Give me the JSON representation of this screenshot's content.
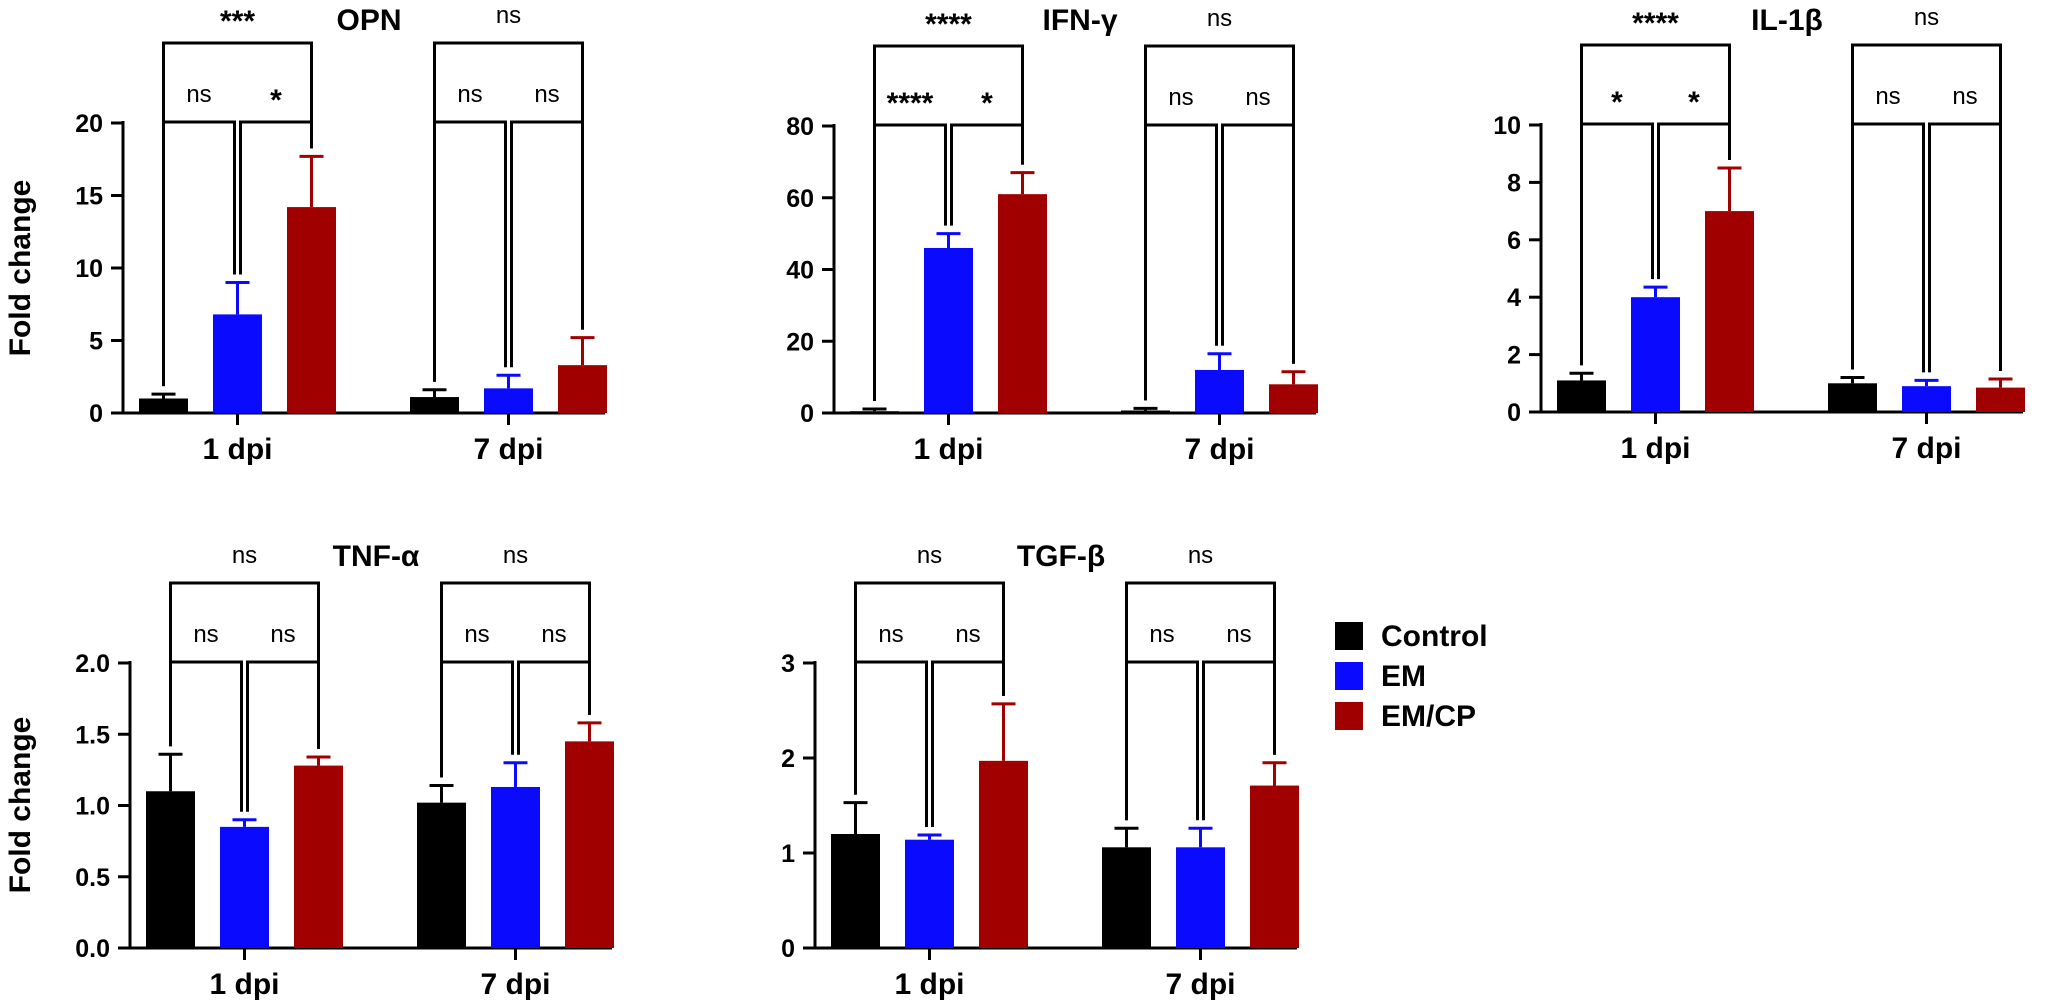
{
  "colors": {
    "Control": "#000000",
    "EM": "#0a0aff",
    "EM/CP": "#a10000"
  },
  "legend": {
    "items": [
      {
        "label": "Control",
        "color": "#000000"
      },
      {
        "label": "EM",
        "color": "#0a0aff"
      },
      {
        "label": "EM/CP",
        "color": "#a10000"
      }
    ]
  },
  "chart_data": [
    {
      "type": "bar",
      "title": "OPN",
      "ylabel": "Fold change",
      "ylim": [
        0,
        20
      ],
      "yticks": [
        0,
        5,
        10,
        15,
        20
      ],
      "ytick_labels": [
        "0",
        "5",
        "10",
        "15",
        "20"
      ],
      "categories": [
        "1 dpi",
        "7 dpi"
      ],
      "series": [
        {
          "name": "Control",
          "values": [
            1.0,
            1.1
          ],
          "errors": [
            0.3,
            0.5
          ]
        },
        {
          "name": "EM",
          "values": [
            6.8,
            1.7
          ],
          "errors": [
            2.2,
            0.9
          ]
        },
        {
          "name": "EM/CP",
          "values": [
            14.2,
            3.3
          ],
          "errors": [
            3.5,
            1.9
          ]
        }
      ],
      "annotations": [
        {
          "group": 0,
          "pair": [
            0,
            1
          ],
          "label": "ns"
        },
        {
          "group": 0,
          "pair": [
            1,
            2
          ],
          "label": "*"
        },
        {
          "group": 0,
          "pair": [
            0,
            2
          ],
          "label": "***"
        },
        {
          "group": 1,
          "pair": [
            0,
            1
          ],
          "label": "ns"
        },
        {
          "group": 1,
          "pair": [
            1,
            2
          ],
          "label": "ns"
        },
        {
          "group": 1,
          "pair": [
            0,
            2
          ],
          "label": "ns"
        }
      ]
    },
    {
      "type": "bar",
      "title": "IFN-γ",
      "ylabel": "",
      "ylim": [
        0,
        80
      ],
      "yticks": [
        0,
        20,
        40,
        60,
        80
      ],
      "ytick_labels": [
        "0",
        "20",
        "40",
        "60",
        "80"
      ],
      "categories": [
        "1 dpi",
        "7 dpi"
      ],
      "series": [
        {
          "name": "Control",
          "values": [
            0.5,
            0.7
          ],
          "errors": [
            0.6,
            0.6
          ]
        },
        {
          "name": "EM",
          "values": [
            46,
            12
          ],
          "errors": [
            4,
            4.5
          ]
        },
        {
          "name": "EM/CP",
          "values": [
            61,
            8
          ],
          "errors": [
            6,
            3.5
          ]
        }
      ],
      "annotations": [
        {
          "group": 0,
          "pair": [
            0,
            1
          ],
          "label": "****"
        },
        {
          "group": 0,
          "pair": [
            1,
            2
          ],
          "label": "*"
        },
        {
          "group": 0,
          "pair": [
            0,
            2
          ],
          "label": "****"
        },
        {
          "group": 1,
          "pair": [
            0,
            1
          ],
          "label": "ns"
        },
        {
          "group": 1,
          "pair": [
            1,
            2
          ],
          "label": "ns"
        },
        {
          "group": 1,
          "pair": [
            0,
            2
          ],
          "label": "ns"
        }
      ]
    },
    {
      "type": "bar",
      "title": "IL-1β",
      "ylabel": "",
      "ylim": [
        0,
        10
      ],
      "yticks": [
        0,
        2,
        4,
        6,
        8,
        10
      ],
      "ytick_labels": [
        "0",
        "2",
        "4",
        "6",
        "8",
        "10"
      ],
      "categories": [
        "1 dpi",
        "7 dpi"
      ],
      "series": [
        {
          "name": "Control",
          "values": [
            1.1,
            1.0
          ],
          "errors": [
            0.25,
            0.2
          ]
        },
        {
          "name": "EM",
          "values": [
            4.0,
            0.9
          ],
          "errors": [
            0.35,
            0.2
          ]
        },
        {
          "name": "EM/CP",
          "values": [
            7.0,
            0.85
          ],
          "errors": [
            1.5,
            0.3
          ]
        }
      ],
      "annotations": [
        {
          "group": 0,
          "pair": [
            0,
            1
          ],
          "label": "*"
        },
        {
          "group": 0,
          "pair": [
            1,
            2
          ],
          "label": "*"
        },
        {
          "group": 0,
          "pair": [
            0,
            2
          ],
          "label": "****"
        },
        {
          "group": 1,
          "pair": [
            0,
            1
          ],
          "label": "ns"
        },
        {
          "group": 1,
          "pair": [
            1,
            2
          ],
          "label": "ns"
        },
        {
          "group": 1,
          "pair": [
            0,
            2
          ],
          "label": "ns"
        }
      ]
    },
    {
      "type": "bar",
      "title": "TNF-α",
      "ylabel": "Fold change",
      "ylim": [
        0,
        2.0
      ],
      "yticks": [
        0,
        0.5,
        1.0,
        1.5,
        2.0
      ],
      "ytick_labels": [
        "0.0",
        "0.5",
        "1.0",
        "1.5",
        "2.0"
      ],
      "categories": [
        "1 dpi",
        "7 dpi"
      ],
      "series": [
        {
          "name": "Control",
          "values": [
            1.1,
            1.02
          ],
          "errors": [
            0.26,
            0.12
          ]
        },
        {
          "name": "EM",
          "values": [
            0.85,
            1.13
          ],
          "errors": [
            0.05,
            0.17
          ]
        },
        {
          "name": "EM/CP",
          "values": [
            1.28,
            1.45
          ],
          "errors": [
            0.06,
            0.13
          ]
        }
      ],
      "annotations": [
        {
          "group": 0,
          "pair": [
            0,
            1
          ],
          "label": "ns"
        },
        {
          "group": 0,
          "pair": [
            1,
            2
          ],
          "label": "ns"
        },
        {
          "group": 0,
          "pair": [
            0,
            2
          ],
          "label": "ns"
        },
        {
          "group": 1,
          "pair": [
            0,
            1
          ],
          "label": "ns"
        },
        {
          "group": 1,
          "pair": [
            1,
            2
          ],
          "label": "ns"
        },
        {
          "group": 1,
          "pair": [
            0,
            2
          ],
          "label": "ns"
        }
      ]
    },
    {
      "type": "bar",
      "title": "TGF-β",
      "ylabel": "",
      "ylim": [
        0,
        3
      ],
      "yticks": [
        0,
        1,
        2,
        3
      ],
      "ytick_labels": [
        "0",
        "1",
        "2",
        "3"
      ],
      "categories": [
        "1 dpi",
        "7 dpi"
      ],
      "series": [
        {
          "name": "Control",
          "values": [
            1.2,
            1.06
          ],
          "errors": [
            0.33,
            0.2
          ]
        },
        {
          "name": "EM",
          "values": [
            1.14,
            1.06
          ],
          "errors": [
            0.05,
            0.2
          ]
        },
        {
          "name": "EM/CP",
          "values": [
            1.97,
            1.71
          ],
          "errors": [
            0.6,
            0.24
          ]
        }
      ],
      "annotations": [
        {
          "group": 0,
          "pair": [
            0,
            1
          ],
          "label": "ns"
        },
        {
          "group": 0,
          "pair": [
            1,
            2
          ],
          "label": "ns"
        },
        {
          "group": 0,
          "pair": [
            0,
            2
          ],
          "label": "ns"
        },
        {
          "group": 1,
          "pair": [
            0,
            1
          ],
          "label": "ns"
        },
        {
          "group": 1,
          "pair": [
            1,
            2
          ],
          "label": "ns"
        },
        {
          "group": 1,
          "pair": [
            0,
            2
          ],
          "label": "ns"
        }
      ]
    }
  ]
}
